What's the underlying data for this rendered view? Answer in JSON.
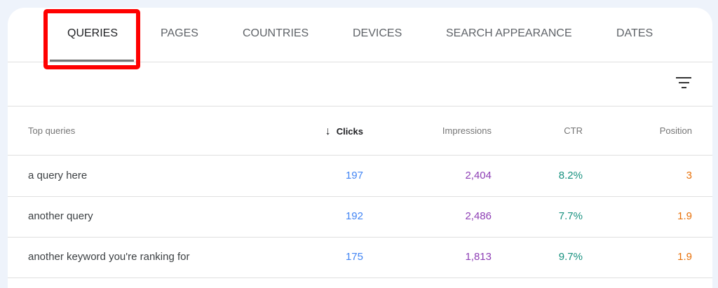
{
  "tabs": [
    {
      "label": "QUERIES",
      "active": true
    },
    {
      "label": "PAGES"
    },
    {
      "label": "COUNTRIES"
    },
    {
      "label": "DEVICES"
    },
    {
      "label": "SEARCH APPEARANCE"
    },
    {
      "label": "DATES"
    }
  ],
  "filter_icon": "filter-list-icon",
  "table": {
    "headers": {
      "query": "Top queries",
      "clicks": "Clicks",
      "impressions": "Impressions",
      "ctr": "CTR",
      "position": "Position"
    },
    "sort_icon": "arrow-down-icon",
    "rows": [
      {
        "query": "a query here",
        "clicks": "197",
        "impressions": "2,404",
        "ctr": "8.2%",
        "position": "3"
      },
      {
        "query": "another query",
        "clicks": "192",
        "impressions": "2,486",
        "ctr": "7.7%",
        "position": "1.9"
      },
      {
        "query": "another keyword you're ranking for",
        "clicks": "175",
        "impressions": "1,813",
        "ctr": "9.7%",
        "position": "1.9"
      }
    ]
  },
  "colors": {
    "clicks": "#4285f4",
    "impressions": "#8e3fb5",
    "ctr": "#17917f",
    "position": "#e8710a",
    "highlight": "#ff0000"
  }
}
